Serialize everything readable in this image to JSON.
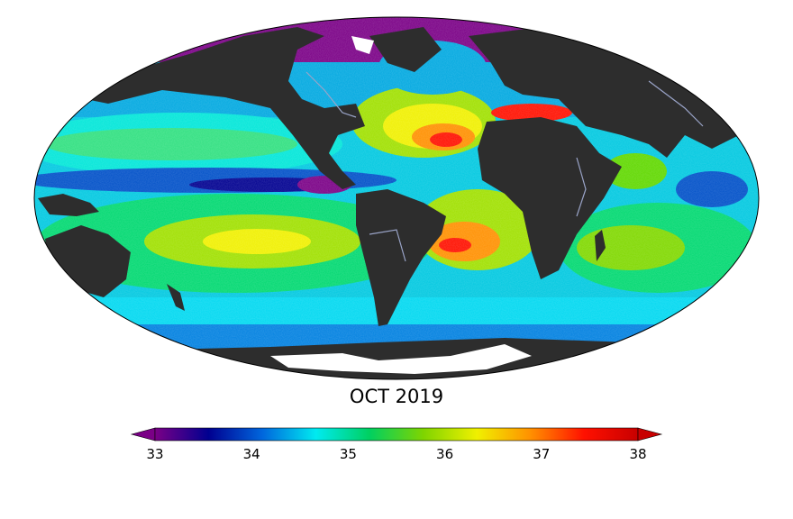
{
  "map": {
    "title": "OCT 2019",
    "projection": "Mollweide",
    "variable_units": "",
    "land_color": "#2d2d2d",
    "missing_color": "#ffffff"
  },
  "colorbar": {
    "min": 33,
    "max": 38,
    "extend": "both",
    "ticks": [
      "33",
      "34",
      "35",
      "36",
      "37",
      "38"
    ],
    "colors": [
      "#7a0086",
      "#000090",
      "#0066dd",
      "#00eaf0",
      "#00d060",
      "#7fd400",
      "#f0f000",
      "#ff9000",
      "#ff1000",
      "#c80000"
    ]
  }
}
